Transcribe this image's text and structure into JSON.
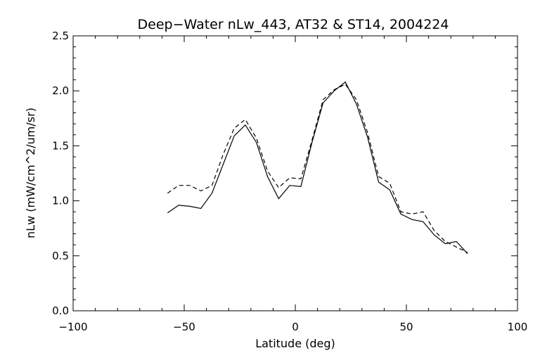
{
  "chart_data": {
    "type": "line",
    "title": "Deep−Water nLw_443, AT32 & ST14, 2004224",
    "xlabel": "Latitude (deg)",
    "ylabel": "nLw (mW/cm^2/um/sr)",
    "xlim": [
      -100,
      100
    ],
    "ylim": [
      0.0,
      2.5
    ],
    "x_ticks": [
      -100,
      -50,
      0,
      50,
      100
    ],
    "x_tick_labels": [
      "−100",
      "−50",
      "0",
      "50",
      "100"
    ],
    "y_ticks": [
      0.0,
      0.5,
      1.0,
      1.5,
      2.0,
      2.5
    ],
    "y_tick_labels": [
      "0.0",
      "0.5",
      "1.0",
      "1.5",
      "2.0",
      "2.5"
    ],
    "grid": false,
    "series": [
      {
        "style": "solid",
        "x": [
          -57.5,
          -52.5,
          -47.5,
          -42.5,
          -37.5,
          -32.5,
          -27.5,
          -22.5,
          -17.5,
          -12.5,
          -7.5,
          -2.5,
          2.5,
          7.5,
          12.5,
          17.5,
          22.5,
          27.5,
          32.5,
          37.5,
          42.5,
          47.5,
          52.5,
          57.5,
          62.5,
          67.5,
          72.5,
          77.5
        ],
        "y": [
          0.89,
          0.96,
          0.95,
          0.93,
          1.07,
          1.33,
          1.59,
          1.69,
          1.53,
          1.22,
          1.02,
          1.14,
          1.13,
          1.53,
          1.89,
          2.0,
          2.08,
          1.88,
          1.58,
          1.17,
          1.1,
          0.88,
          0.83,
          0.81,
          0.69,
          0.61,
          0.63,
          0.52
        ]
      },
      {
        "style": "dashed",
        "x": [
          -57.5,
          -52.5,
          -47.5,
          -42.5,
          -37.5,
          -32.5,
          -27.5,
          -22.5,
          -17.5,
          -12.5,
          -7.5,
          -2.5,
          2.5,
          7.5,
          12.5,
          17.5,
          22.5,
          27.5,
          32.5,
          37.5,
          42.5,
          47.5,
          52.5,
          57.5,
          62.5,
          67.5,
          72.5,
          77.5
        ],
        "y": [
          1.07,
          1.14,
          1.14,
          1.09,
          1.14,
          1.42,
          1.66,
          1.74,
          1.57,
          1.27,
          1.12,
          1.21,
          1.2,
          1.55,
          1.92,
          2.01,
          2.06,
          1.92,
          1.62,
          1.22,
          1.16,
          0.9,
          0.88,
          0.9,
          0.73,
          0.63,
          0.58,
          0.53
        ]
      }
    ]
  }
}
